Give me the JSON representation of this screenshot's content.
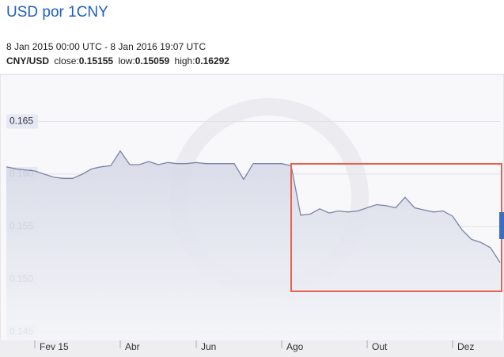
{
  "chart_data": {
    "type": "line",
    "title": "USD por 1CNY",
    "subtitle": "8 Jan 2015 00:00 UTC - 8 Jan 2016 19:07 UTC",
    "pair": "CNY/USD",
    "stats": [
      {
        "label": "close:",
        "value": 0.15155
      },
      {
        "label": "low:",
        "value": 0.15059
      },
      {
        "label": "high:",
        "value": 0.16292
      }
    ],
    "categories": [
      null,
      null,
      null,
      "Fev 15",
      null,
      null,
      null,
      null,
      null,
      null,
      null,
      null,
      "Abr",
      null,
      null,
      null,
      null,
      null,
      null,
      null,
      "Jun",
      null,
      null,
      null,
      null,
      null,
      null,
      null,
      null,
      "Ago",
      null,
      null,
      null,
      null,
      null,
      null,
      null,
      null,
      "Out",
      null,
      null,
      null,
      null,
      null,
      null,
      null,
      null,
      "Dez",
      null,
      null,
      null,
      null,
      null
    ],
    "series": [
      {
        "name": "CNY/USD",
        "color": "#7c82a8",
        "values": [
          0.1607,
          0.1605,
          0.1604,
          0.1603,
          0.16,
          0.1597,
          0.1596,
          0.1596,
          0.16,
          0.1605,
          0.1607,
          0.1608,
          0.1622,
          0.1609,
          0.1609,
          0.1612,
          0.1609,
          0.1611,
          0.161,
          0.161,
          0.1611,
          0.161,
          0.161,
          0.161,
          0.161,
          0.1595,
          0.161,
          0.161,
          0.161,
          0.161,
          0.1608,
          0.1561,
          0.1562,
          0.1567,
          0.1563,
          0.1565,
          0.1564,
          0.1565,
          0.1568,
          0.1571,
          0.157,
          0.1568,
          0.1578,
          0.1568,
          0.1566,
          0.1564,
          0.1565,
          0.156,
          0.1547,
          0.1538,
          0.1535,
          0.153,
          0.1516
        ]
      }
    ],
    "ylim": [
      0.1442,
      0.1694
    ],
    "yticks": [
      0.145,
      {
        "value": 0.15,
        "label": "0.150"
      },
      0.155,
      {
        "value": 0.16,
        "label": "0.160"
      },
      0.165
    ],
    "grid": true
  }
}
